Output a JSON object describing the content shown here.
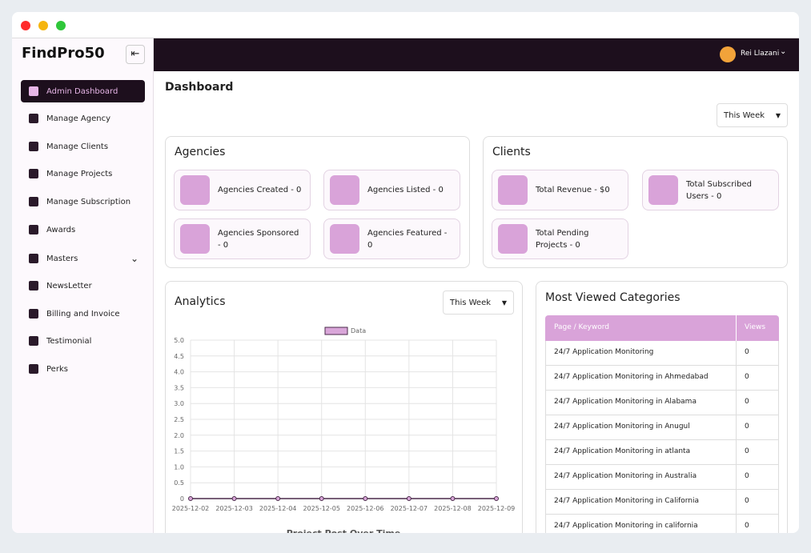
{
  "sidebar": {
    "brand": "FindPro50",
    "menu": [
      "Admin Dashboard",
      "Manage Agency",
      "Manage Clients",
      "Manage Projects",
      "Manage Subscription",
      "Awards",
      "Masters",
      "NewsLetter",
      "Billing and Invoice",
      "Testimonial",
      "Perks"
    ]
  },
  "header": {
    "user": "Rei Llazani"
  },
  "page": {
    "title": "Dashboard",
    "period": "This Week"
  },
  "agencies": {
    "title": "Agencies",
    "cards": [
      "Agencies Created - 0",
      "Agencies Listed - 0",
      "Agencies Sponsored - 0",
      "Agencies Featured - 0"
    ]
  },
  "clients": {
    "title": "Clients",
    "cards": [
      "Total Revenue - $0",
      "Total Subscribed Users - 0",
      "Total Pending Projects - 0"
    ]
  },
  "analytics": {
    "title": "Analytics",
    "period": "This Week"
  },
  "chart_data": {
    "type": "line",
    "title": "Project Post Over Time",
    "categories": [
      "2025-12-02",
      "2025-12-03",
      "2025-12-04",
      "2025-12-05",
      "2025-12-06",
      "2025-12-07",
      "2025-12-08",
      "2025-12-09"
    ],
    "series": [
      {
        "name": "Data",
        "color": "#4a2a4a",
        "fill": "#d9a6d9",
        "values": [
          0,
          0,
          0,
          0,
          0,
          0,
          0,
          0
        ]
      }
    ],
    "ylim": [
      0,
      5
    ],
    "yticks": [
      0,
      0.5,
      {
        "value": 1,
        "label": "1.0"
      },
      1.5,
      {
        "value": 2,
        "label": "2.0"
      },
      2.5,
      {
        "value": 3,
        "label": "3.0"
      },
      3.5,
      {
        "value": 4,
        "label": "4.0"
      },
      4.5,
      {
        "value": 5,
        "label": "5.0"
      }
    ],
    "grid": true,
    "legend": "top"
  },
  "categories_table": {
    "title": "Most Viewed Categories",
    "columns": [
      "Page / Keyword",
      "Views"
    ],
    "rows": [
      [
        "24/7 Application Monitoring",
        0
      ],
      [
        "24/7 Application Monitoring in Ahmedabad",
        0
      ],
      [
        "24/7 Application Monitoring in Alabama",
        0
      ],
      [
        "24/7 Application Monitoring in Anugul",
        0
      ],
      [
        "24/7 Application Monitoring in atlanta",
        0
      ],
      [
        "24/7 Application Monitoring in Australia",
        0
      ],
      [
        "24/7 Application Monitoring in California",
        0
      ],
      [
        "24/7 Application Monitoring in california",
        0
      ]
    ]
  }
}
